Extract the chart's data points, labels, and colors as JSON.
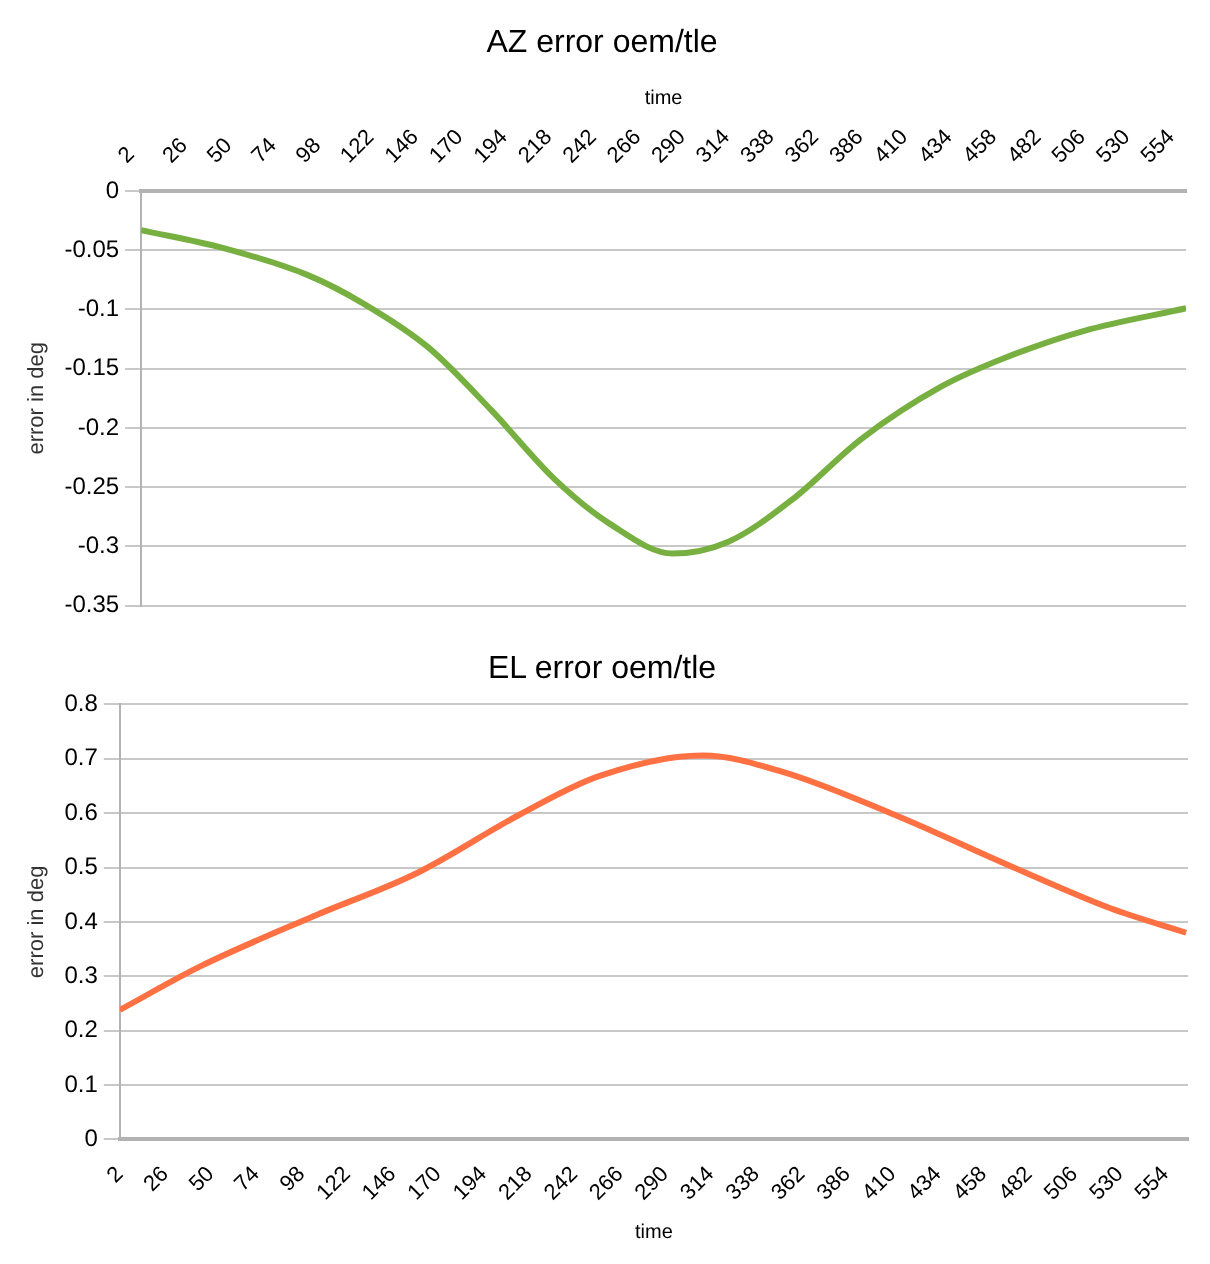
{
  "chart_data": [
    {
      "type": "line",
      "title": "AZ error oem/tle",
      "xlabel": "time",
      "ylabel": "error in deg",
      "xlim": [
        2,
        566
      ],
      "xticks": [
        2,
        26,
        50,
        74,
        98,
        122,
        146,
        170,
        194,
        218,
        242,
        266,
        290,
        314,
        338,
        362,
        386,
        410,
        434,
        458,
        482,
        506,
        530,
        554
      ],
      "ylim": [
        -0.35,
        0
      ],
      "yticks": [
        -0.35,
        -0.3,
        -0.25,
        -0.2,
        -0.15,
        -0.1,
        -0.05,
        0
      ],
      "grid": "y",
      "legend": false,
      "marker": "none",
      "line_style": "solid",
      "series": [
        {
          "color": "#77b041",
          "x": [
            2,
            46,
            92,
            122,
            157,
            191,
            225,
            255,
            289,
            319,
            353,
            391,
            434,
            468,
            511,
            566
          ],
          "values": [
            -0.033,
            -0.048,
            -0.071,
            -0.095,
            -0.132,
            -0.185,
            -0.243,
            -0.281,
            -0.306,
            -0.296,
            -0.261,
            -0.209,
            -0.165,
            -0.141,
            -0.118,
            -0.099
          ]
        }
      ]
    },
    {
      "type": "line",
      "title": "EL error oem/tle",
      "xlabel": "time",
      "ylabel": "error in deg",
      "xlim": [
        2,
        566
      ],
      "xticks": [
        2,
        26,
        50,
        74,
        98,
        122,
        146,
        170,
        194,
        218,
        242,
        266,
        290,
        314,
        338,
        362,
        386,
        410,
        434,
        458,
        482,
        506,
        530,
        554
      ],
      "ylim": [
        0,
        0.8
      ],
      "yticks": [
        0,
        0.1,
        0.2,
        0.3,
        0.4,
        0.5,
        0.6,
        0.7,
        0.8
      ],
      "grid": "y",
      "legend": false,
      "marker": "none",
      "line_style": "solid",
      "series": [
        {
          "color": "#ff7043",
          "x": [
            2,
            45,
            104,
            159,
            213,
            255,
            310,
            352,
            411,
            474,
            525,
            565
          ],
          "values": [
            0.238,
            0.319,
            0.41,
            0.49,
            0.597,
            0.668,
            0.706,
            0.676,
            0.597,
            0.5,
            0.425,
            0.38
          ]
        }
      ]
    }
  ]
}
